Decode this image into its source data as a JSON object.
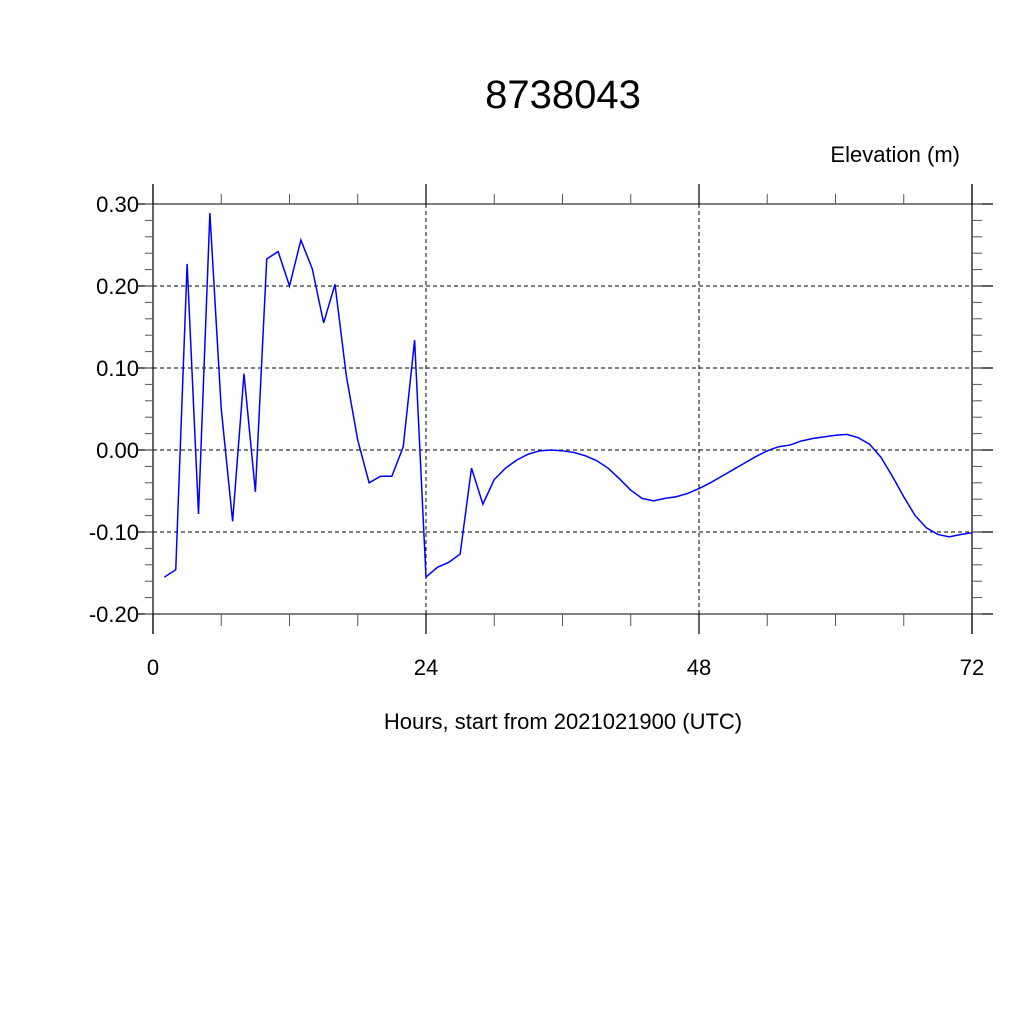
{
  "chart_data": {
    "type": "line",
    "title": "8738043",
    "ylabel": "Elevation (m)",
    "xlabel": "Hours, start from 2021021900 (UTC)",
    "xlim": [
      0,
      72
    ],
    "ylim": [
      -0.2,
      0.3
    ],
    "xticks": [
      0,
      24,
      48,
      72
    ],
    "xtick_labels": [
      "0",
      "24",
      "48",
      "72"
    ],
    "yticks": [
      0.3,
      0.2,
      0.1,
      0.0,
      -0.1,
      -0.2
    ],
    "ytick_labels": [
      "0.30",
      "0.20",
      "0.10",
      "0.00",
      "-0.10",
      "-0.20"
    ],
    "grid": true,
    "line_color": "#0000ff",
    "series": [
      {
        "x": [
          1,
          2,
          3,
          4,
          5,
          6,
          7,
          8,
          9,
          10,
          11,
          12,
          13,
          14,
          15,
          16,
          17,
          18,
          19,
          20,
          21,
          22,
          23,
          24,
          25,
          26,
          27,
          28,
          29,
          30,
          31,
          32,
          33,
          34,
          35,
          36,
          37,
          38,
          39,
          40,
          41,
          42,
          43,
          44,
          45,
          46,
          47,
          48,
          49,
          50,
          51,
          52,
          53,
          54,
          55,
          56,
          57,
          58,
          59,
          60,
          61,
          62,
          63,
          64,
          65,
          66,
          67,
          68,
          69,
          70,
          71,
          72
        ],
        "values": [
          -0.155,
          -0.146,
          0.227,
          -0.078,
          0.289,
          0.05,
          -0.087,
          0.093,
          -0.051,
          0.233,
          0.242,
          0.2,
          0.256,
          0.221,
          0.155,
          0.202,
          0.09,
          0.012,
          -0.04,
          -0.032,
          -0.032,
          0.004,
          0.134,
          -0.155,
          -0.143,
          -0.137,
          -0.127,
          -0.022,
          -0.066,
          -0.036,
          -0.022,
          -0.012,
          -0.005,
          -0.001,
          0.0,
          -0.001,
          -0.003,
          -0.007,
          -0.013,
          -0.022,
          -0.035,
          -0.049,
          -0.059,
          -0.062,
          -0.059,
          -0.057,
          -0.053,
          -0.047,
          -0.04,
          -0.032,
          -0.024,
          -0.016,
          -0.008,
          -0.001,
          0.004,
          0.006,
          0.011,
          0.014,
          0.016,
          0.018,
          0.019,
          0.015,
          0.007,
          -0.009,
          -0.032,
          -0.057,
          -0.08,
          -0.095,
          -0.103,
          -0.106,
          -0.103,
          -0.101
        ]
      }
    ]
  }
}
